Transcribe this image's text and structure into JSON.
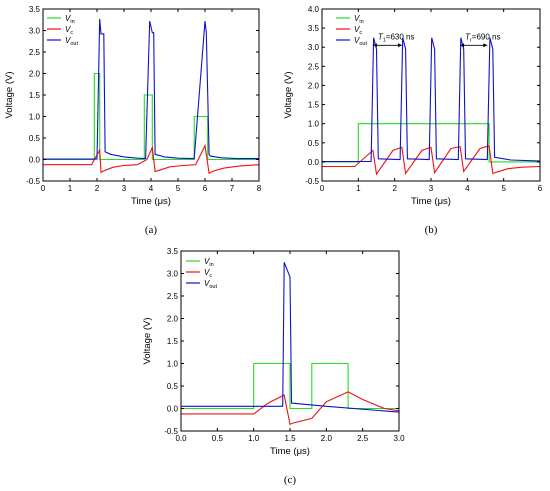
{
  "colors": {
    "Vin": "#22dd22",
    "Vc": "#ee1111",
    "Vout": "#1111cc"
  },
  "chart_data": [
    {
      "id": "a",
      "type": "line",
      "caption": "(a)",
      "xlabel": "Time (μs)",
      "ylabel": "Voltage (V)",
      "xlim": [
        0,
        8
      ],
      "ylim": [
        -0.5,
        3.5
      ],
      "xticks": [
        "0",
        "1",
        "2",
        "3",
        "4",
        "5",
        "6",
        "7",
        "8"
      ],
      "yticks": [
        "-0.5",
        "0.0",
        "0.5",
        "1.0",
        "1.5",
        "2.0",
        "2.5",
        "3.0",
        "3.5"
      ],
      "legend": {
        "placement": "top-left",
        "entries": [
          {
            "key": "Vin",
            "main": "V",
            "sub": "in"
          },
          {
            "key": "Vc",
            "main": "V",
            "sub": "c"
          },
          {
            "key": "Vout",
            "main": "V",
            "sub": "out"
          }
        ]
      },
      "series": [
        {
          "key": "Vin",
          "color": "#22dd22",
          "x": [
            0,
            1.9,
            1.9,
            2.1,
            2.1,
            3.75,
            3.75,
            4.05,
            4.05,
            5.6,
            5.6,
            6.1,
            6.1,
            8
          ],
          "y": [
            0,
            0,
            2,
            2,
            0,
            0,
            1.5,
            1.5,
            0,
            0,
            1,
            1,
            0,
            0
          ]
        },
        {
          "key": "Vc",
          "color": "#ee1111",
          "x": [
            0,
            1.8,
            2.1,
            2.15,
            2.3,
            2.6,
            3.0,
            3.5,
            3.85,
            4.05,
            4.15,
            4.3,
            4.7,
            5.2,
            5.65,
            6.0,
            6.15,
            6.3,
            6.7,
            7.3,
            8
          ],
          "y": [
            -0.12,
            -0.12,
            0.22,
            -0.3,
            -0.25,
            -0.18,
            -0.14,
            -0.12,
            0.0,
            0.28,
            -0.28,
            -0.25,
            -0.17,
            -0.14,
            -0.12,
            0.32,
            -0.32,
            -0.27,
            -0.2,
            -0.15,
            -0.12
          ]
        },
        {
          "key": "Vout",
          "color": "#1111cc",
          "x": [
            0,
            2.0,
            2.1,
            2.15,
            2.25,
            2.3,
            2.5,
            3.0,
            3.5,
            3.8,
            3.95,
            4.05,
            4.1,
            4.15,
            4.5,
            5.0,
            5.6,
            6.0,
            6.05,
            6.15,
            6.2,
            6.6,
            7.2,
            8
          ],
          "y": [
            0.01,
            0.01,
            3.27,
            2.92,
            2.92,
            0.18,
            0.12,
            0.06,
            0.03,
            0.02,
            3.22,
            2.95,
            2.95,
            0.12,
            0.06,
            0.03,
            0.02,
            3.22,
            2.95,
            0.12,
            0.08,
            0.04,
            0.02,
            0.02
          ]
        }
      ]
    },
    {
      "id": "b",
      "type": "line",
      "caption": "(b)",
      "xlabel": "Time (μs)",
      "ylabel": "Voltage (V)",
      "xlim": [
        0,
        6
      ],
      "ylim": [
        -0.5,
        4.0
      ],
      "xticks": [
        "0",
        "1",
        "2",
        "3",
        "4",
        "5",
        "6"
      ],
      "yticks": [
        "-0.5",
        "0.0",
        "0.5",
        "1.0",
        "1.5",
        "2.0",
        "2.5",
        "3.0",
        "3.5",
        "4.0"
      ],
      "legend": {
        "placement": "top-right",
        "entries": [
          {
            "key": "Vin",
            "main": "V",
            "sub": "in"
          },
          {
            "key": "Vc",
            "main": "V",
            "sub": "c"
          },
          {
            "key": "Vout",
            "main": "V",
            "sub": "out"
          }
        ]
      },
      "annotations": [
        {
          "main": "T",
          "sub": "1",
          "rest": "=630 ns",
          "x0": 1.4,
          "x1": 2.2,
          "y": 3.05
        },
        {
          "main": "T",
          "sub": "r",
          "rest": "=690 ns",
          "x0": 3.8,
          "x1": 4.55,
          "y": 3.05
        }
      ],
      "series": [
        {
          "key": "Vin",
          "color": "#22dd22",
          "x": [
            0,
            1.0,
            1.0,
            4.6,
            4.6,
            6
          ],
          "y": [
            0,
            0,
            1.0,
            1.0,
            0,
            0
          ]
        },
        {
          "key": "Vc",
          "color": "#ee1111",
          "x": [
            0,
            0.9,
            1.4,
            1.5,
            1.95,
            2.2,
            2.3,
            2.75,
            3.0,
            3.1,
            3.55,
            3.8,
            3.9,
            4.35,
            4.6,
            4.7,
            5.1,
            5.5,
            6
          ],
          "y": [
            -0.12,
            -0.12,
            0.3,
            -0.32,
            0.3,
            0.38,
            -0.3,
            0.3,
            0.38,
            -0.28,
            0.35,
            0.4,
            -0.25,
            0.35,
            0.42,
            -0.3,
            -0.18,
            -0.14,
            -0.12
          ]
        },
        {
          "key": "Vout",
          "color": "#1111cc",
          "x": [
            0,
            1.35,
            1.42,
            1.5,
            1.55,
            2.15,
            2.22,
            2.3,
            2.35,
            2.95,
            3.02,
            3.1,
            3.15,
            3.75,
            3.82,
            3.9,
            3.95,
            4.55,
            4.62,
            4.7,
            4.75,
            5.2,
            6
          ],
          "y": [
            0.01,
            0.01,
            3.25,
            2.95,
            0.08,
            0.06,
            3.25,
            2.95,
            0.08,
            0.06,
            3.25,
            2.95,
            0.08,
            0.06,
            3.25,
            2.95,
            0.08,
            0.06,
            3.25,
            2.95,
            0.12,
            0.05,
            0.02
          ]
        }
      ]
    },
    {
      "id": "c",
      "type": "line",
      "caption": "(c)",
      "xlabel": "Time (μs)",
      "ylabel": "Voltage (V)",
      "xlim": [
        0,
        3.0
      ],
      "ylim": [
        -0.5,
        3.5
      ],
      "xticks": [
        "0.0",
        "0.5",
        "1.0",
        "1.5",
        "2.0",
        "2.5",
        "3.0"
      ],
      "yticks": [
        "-0.5",
        "0.0",
        "0.5",
        "1.0",
        "1.5",
        "2.0",
        "2.5",
        "3.0",
        "3.5"
      ],
      "legend": {
        "placement": "top-left",
        "entries": [
          {
            "key": "Vin",
            "main": "V",
            "sub": "in"
          },
          {
            "key": "Vc",
            "main": "V",
            "sub": "c"
          },
          {
            "key": "Vout",
            "main": "V",
            "sub": "out"
          }
        ]
      },
      "series": [
        {
          "key": "Vin",
          "color": "#22dd22",
          "x": [
            0,
            1.0,
            1.0,
            1.5,
            1.5,
            1.8,
            1.8,
            2.3,
            2.3,
            3.0
          ],
          "y": [
            0,
            0,
            1.0,
            1.0,
            0,
            0,
            1.0,
            1.0,
            0,
            0
          ]
        },
        {
          "key": "Vc",
          "color": "#ee1111",
          "x": [
            0,
            1.0,
            1.2,
            1.42,
            1.5,
            1.55,
            1.8,
            2.0,
            2.3,
            2.5,
            2.8,
            3.0
          ],
          "y": [
            -0.12,
            -0.12,
            0.12,
            0.3,
            -0.35,
            -0.32,
            -0.22,
            0.15,
            0.37,
            0.2,
            0.0,
            -0.05
          ]
        },
        {
          "key": "Vout",
          "color": "#1111cc",
          "x": [
            0,
            1.4,
            1.42,
            1.5,
            1.52,
            2.0,
            3.0
          ],
          "y": [
            0.05,
            0.05,
            3.25,
            2.92,
            0.12,
            0.05,
            -0.08
          ]
        }
      ]
    }
  ]
}
